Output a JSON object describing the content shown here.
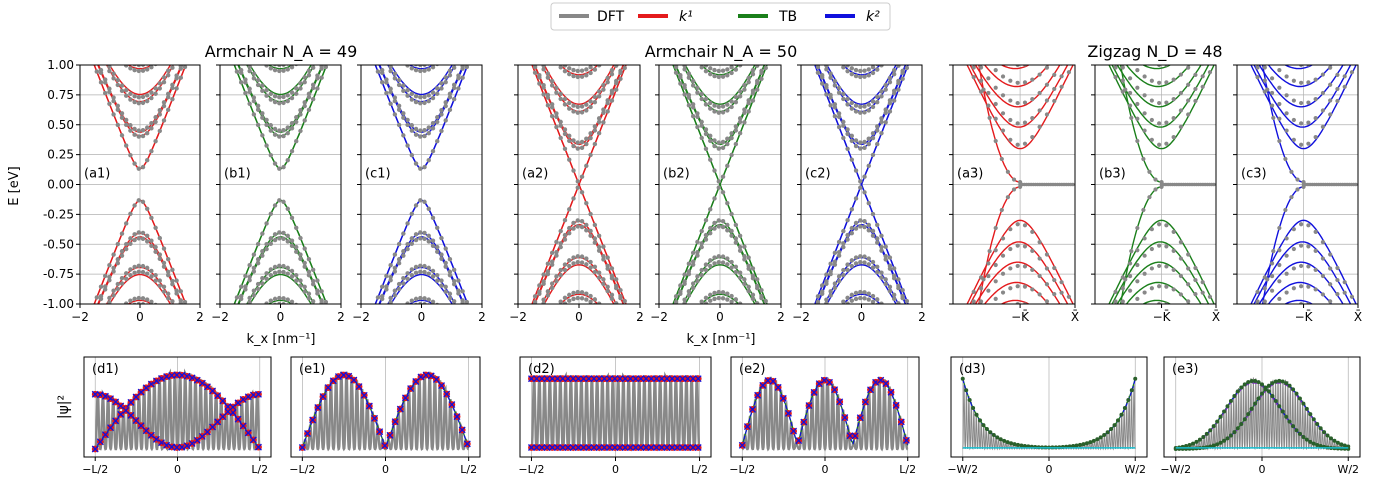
{
  "legend": {
    "items": [
      {
        "label": "DFT",
        "color": "#888888"
      },
      {
        "label": "k¹",
        "color": "#e41a1c"
      },
      {
        "label": "TB",
        "color": "#1a7f1a"
      },
      {
        "label": "k²",
        "color": "#1010dd"
      }
    ]
  },
  "group_titles": [
    "Armchair N_A = 49",
    "Armchair N_A = 50",
    "Zigzag N_D = 48"
  ],
  "axis_labels": {
    "band_y": "E [eV]",
    "band_x": "k_x [nm⁻¹]",
    "wave_y": "|ψ|²"
  },
  "colors": {
    "dft": "#888888",
    "k1": "#e41a1c",
    "tb": "#1a7f1a",
    "k2": "#1010dd",
    "cyan": "#17becf",
    "purple": "#7b2fbf",
    "grid": "#b0b0b0"
  },
  "chart_data": [
    {
      "type": "line",
      "group": "bands",
      "ylim": [
        -1.0,
        1.0
      ],
      "yticks": [
        "1.00",
        "0.75",
        "0.50",
        "0.25",
        "0.00",
        "-0.25",
        "-0.50",
        "-0.75",
        "-1.00"
      ],
      "panels": [
        {
          "label": "(a1)",
          "model": "k1",
          "kind": "armchair",
          "gap": 0.13,
          "xlim": [
            -2,
            2
          ],
          "xticks": [
            "−2",
            "0",
            "2"
          ]
        },
        {
          "label": "(b1)",
          "model": "tb",
          "kind": "armchair",
          "gap": 0.12,
          "xlim": [
            -2,
            2
          ],
          "xticks": [
            "−2",
            "0",
            "2"
          ]
        },
        {
          "label": "(c1)",
          "model": "k2",
          "kind": "armchair",
          "gap": 0.12,
          "xlim": [
            -2,
            2
          ],
          "xticks": [
            "−2",
            "0",
            "2"
          ]
        },
        {
          "label": "(a2)",
          "model": "k1",
          "kind": "armchair",
          "gap": 0.0,
          "xlim": [
            -2,
            2
          ],
          "xticks": [
            "−2",
            "0",
            "2"
          ]
        },
        {
          "label": "(b2)",
          "model": "tb",
          "kind": "armchair",
          "gap": 0.0,
          "xlim": [
            -2,
            2
          ],
          "xticks": [
            "−2",
            "0",
            "2"
          ]
        },
        {
          "label": "(c2)",
          "model": "k2",
          "kind": "armchair",
          "gap": 0.0,
          "xlim": [
            -2,
            2
          ],
          "xticks": [
            "−2",
            "0",
            "2"
          ]
        },
        {
          "label": "(a3)",
          "model": "k1",
          "kind": "zigzag",
          "xticks": [
            "−K̄",
            "X̄"
          ]
        },
        {
          "label": "(b3)",
          "model": "tb",
          "kind": "zigzag",
          "xticks": [
            "−K̄",
            "X̄"
          ]
        },
        {
          "label": "(c3)",
          "model": "k2",
          "kind": "zigzag",
          "xticks": [
            "−K̄",
            "X̄"
          ]
        }
      ],
      "armchair_band_edges_N49": [
        0.13,
        0.4,
        0.68,
        0.95
      ],
      "armchair_band_edges_N50": [
        0.0,
        0.3,
        0.6,
        0.9
      ],
      "zigzag_flat_band": 0.0
    },
    {
      "type": "line",
      "group": "wavefunctions",
      "panels": [
        {
          "label": "(d1)",
          "pattern": "sine-nodes",
          "xticks": [
            "−L/2",
            "0",
            "L/2"
          ]
        },
        {
          "label": "(e1)",
          "pattern": "double-lobe",
          "xticks": [
            "−L/2",
            "0",
            "L/2"
          ]
        },
        {
          "label": "(d2)",
          "pattern": "flat",
          "xticks": [
            "−L/2",
            "0",
            "L/2"
          ]
        },
        {
          "label": "(e2)",
          "pattern": "triple-lobe",
          "xticks": [
            "−L/2",
            "0",
            "L/2"
          ]
        },
        {
          "label": "(d3)",
          "pattern": "edge-states",
          "xticks": [
            "−W/2",
            "0",
            "W/2"
          ]
        },
        {
          "label": "(e3)",
          "pattern": "bulk-gaussian",
          "xticks": [
            "−W/2",
            "0",
            "W/2"
          ]
        }
      ]
    }
  ]
}
